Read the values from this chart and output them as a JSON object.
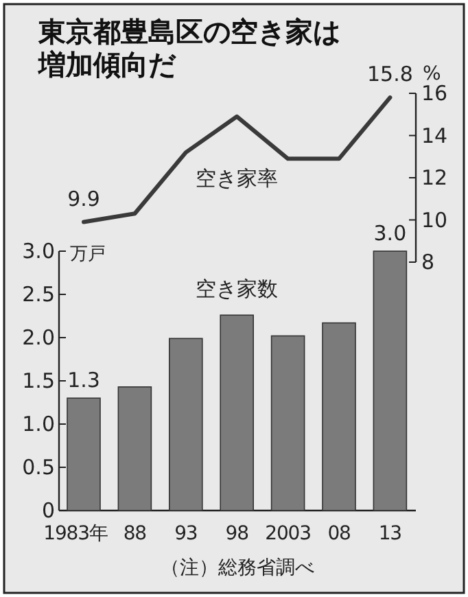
{
  "chart_data": [
    {
      "type": "line",
      "title": "東京都豊島区の空き家は増加傾向だ",
      "ylabel": "%",
      "categories": [
        null,
        null,
        null,
        null,
        null,
        null,
        null
      ],
      "series": [
        {
          "name": "空き家率",
          "color": "#3a3a3a",
          "values": [
            9.9,
            10.3,
            13.2,
            14.9,
            12.9,
            12.9,
            15.8
          ],
          "value_labels": [
            "9.9",
            null,
            null,
            null,
            null,
            null,
            "15.8"
          ]
        }
      ],
      "ylim": [
        8,
        16
      ],
      "yticks": [
        8,
        10,
        12,
        14,
        16
      ],
      "tick_labels": "y",
      "marker": "none"
    },
    {
      "type": "bar",
      "ylabel": "万戸",
      "categories": [
        "1983年",
        "88",
        "93",
        "98",
        "2003",
        "08",
        "13"
      ],
      "series": [
        {
          "name": "空き家数",
          "color": "#7b7b7b",
          "values": [
            1.3,
            1.43,
            1.99,
            2.26,
            2.02,
            2.17,
            3.0
          ],
          "value_labels": [
            "1.3",
            null,
            null,
            null,
            null,
            null,
            "3.0"
          ]
        }
      ],
      "ylim": [
        0,
        3
      ],
      "yticks": [
        {
          "value": 0,
          "label": "0"
        },
        {
          "value": 0.5,
          "label": "0.5"
        },
        {
          "value": 1,
          "label": "1.0"
        },
        {
          "value": 1.5,
          "label": "1.5"
        },
        {
          "value": 2,
          "label": "2.0"
        },
        {
          "value": 2.5,
          "label": "2.5"
        },
        {
          "value": 3,
          "label": "3.0"
        }
      ],
      "annotations": [
        "（注）総務省調べ"
      ],
      "legend": false,
      "grid": false
    }
  ]
}
